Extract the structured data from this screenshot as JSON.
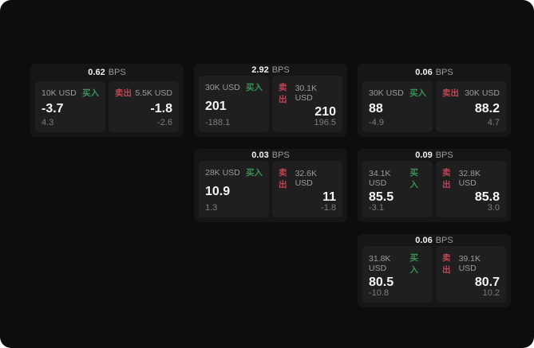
{
  "labels": {
    "bps_suffix": "BPS",
    "buy": "买入",
    "sell": "卖出"
  },
  "colors": {
    "page_bg": "#0d0d0d",
    "card_bg": "#161616",
    "panel_bg": "#1f1f1f",
    "buy": "#3c9158",
    "sell": "#bf4455"
  },
  "cards": [
    {
      "bps": "0.62",
      "row": 1,
      "col": 1,
      "buy": {
        "amount": "10K USD",
        "value": "-3.7",
        "delta": "4.3"
      },
      "sell": {
        "amount": "5.5K USD",
        "value": "-1.8",
        "delta": "-2.6"
      }
    },
    {
      "bps": "2.92",
      "row": 1,
      "col": 2,
      "buy": {
        "amount": "30K USD",
        "value": "201",
        "delta": "-188.1"
      },
      "sell": {
        "amount": "30.1K USD",
        "value": "210",
        "delta": "196.5"
      }
    },
    {
      "bps": "0.06",
      "row": 1,
      "col": 3,
      "buy": {
        "amount": "30K USD",
        "value": "88",
        "delta": "-4.9"
      },
      "sell": {
        "amount": "30K USD",
        "value": "88.2",
        "delta": "4.7"
      }
    },
    {
      "bps": "0.03",
      "row": 2,
      "col": 2,
      "buy": {
        "amount": "28K USD",
        "value": "10.9",
        "delta": "1.3"
      },
      "sell": {
        "amount": "32.6K USD",
        "value": "11",
        "delta": "-1.8"
      }
    },
    {
      "bps": "0.09",
      "row": 2,
      "col": 3,
      "buy": {
        "amount": "34.1K USD",
        "value": "85.5",
        "delta": "-3.1"
      },
      "sell": {
        "amount": "32.8K USD",
        "value": "85.8",
        "delta": "3.0"
      }
    },
    {
      "bps": "0.06",
      "row": 3,
      "col": 3,
      "buy": {
        "amount": "31.8K USD",
        "value": "80.5",
        "delta": "-10.8"
      },
      "sell": {
        "amount": "39.1K USD",
        "value": "80.7",
        "delta": "10.2"
      }
    }
  ]
}
